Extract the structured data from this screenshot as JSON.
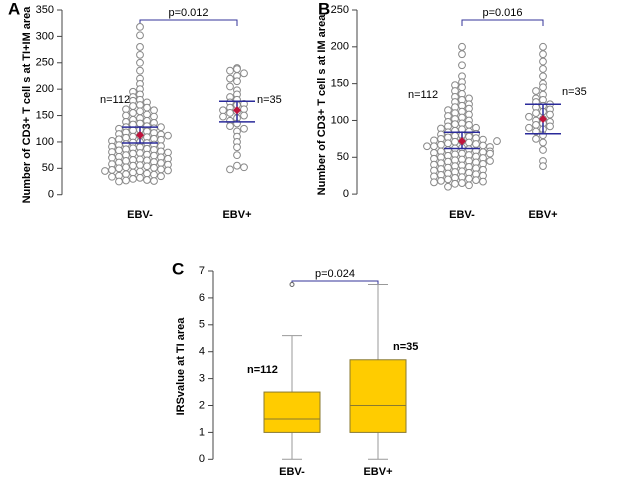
{
  "chart_data": [
    {
      "type": "dot",
      "panel_label": "A",
      "ylabel": "Number of CD3+ T cell s at TI+IM area",
      "categories": [
        "EBV-",
        "EBV+"
      ],
      "points": [
        [
          318,
          302,
          280,
          265,
          250,
          235,
          220,
          210,
          200,
          195,
          190,
          185,
          180,
          178,
          175,
          170,
          168,
          165,
          162,
          160,
          158,
          155,
          152,
          150,
          148,
          145,
          142,
          140,
          138,
          136,
          135,
          133,
          130,
          128,
          126,
          125,
          123,
          122,
          120,
          118,
          117,
          115,
          114,
          112,
          110,
          109,
          108,
          106,
          105,
          104,
          102,
          100,
          99,
          98,
          96,
          95,
          94,
          92,
          91,
          90,
          88,
          87,
          86,
          85,
          84,
          82,
          81,
          80,
          79,
          78,
          76,
          75,
          74,
          72,
          71,
          70,
          68,
          67,
          66,
          65,
          64,
          62,
          61,
          60,
          58,
          57,
          56,
          55,
          54,
          52,
          51,
          50,
          48,
          47,
          46,
          45,
          44,
          42,
          40,
          39,
          38,
          36,
          35,
          34,
          32,
          30,
          28,
          27,
          26,
          25,
          128,
          112
        ],
        [
          240,
          238,
          235,
          230,
          225,
          220,
          215,
          205,
          198,
          190,
          185,
          180,
          175,
          172,
          170,
          165,
          162,
          160,
          158,
          155,
          150,
          148,
          145,
          140,
          135,
          130,
          125,
          120,
          110,
          100,
          90,
          75,
          55,
          48,
          52
        ]
      ],
      "mean": [
        113,
        160
      ],
      "err_low": [
        98,
        138
      ],
      "err_high": [
        128,
        177
      ],
      "n_labels": [
        "n=112",
        "n=35"
      ],
      "p_label": "p=0.012",
      "ylim": [
        -10,
        350
      ],
      "yticks": [
        0,
        50,
        100,
        150,
        200,
        250,
        300,
        350
      ]
    },
    {
      "type": "dot",
      "panel_label": "B",
      "ylabel": "Number of CD3+ T cell s at IM area",
      "categories": [
        "EBV-",
        "EBV+"
      ],
      "points": [
        [
          200,
          190,
          175,
          160,
          152,
          148,
          145,
          140,
          136,
          132,
          130,
          128,
          125,
          122,
          120,
          118,
          116,
          114,
          112,
          110,
          108,
          106,
          104,
          102,
          100,
          98,
          96,
          95,
          94,
          92,
          90,
          89,
          88,
          86,
          85,
          84,
          82,
          81,
          80,
          79,
          78,
          77,
          76,
          75,
          74,
          73,
          72,
          71,
          70,
          69,
          68,
          67,
          66,
          65,
          64,
          63,
          62,
          61,
          60,
          59,
          58,
          57,
          56,
          55,
          54,
          53,
          52,
          51,
          50,
          49,
          48,
          47,
          46,
          45,
          44,
          43,
          42,
          41,
          40,
          39,
          38,
          37,
          36,
          35,
          34,
          33,
          32,
          31,
          30,
          29,
          28,
          27,
          26,
          25,
          24,
          23,
          22,
          21,
          20,
          19,
          18,
          17,
          16,
          15,
          14,
          12,
          10,
          65,
          72,
          58,
          45,
          55
        ],
        [
          200,
          190,
          180,
          170,
          160,
          150,
          145,
          140,
          135,
          130,
          128,
          125,
          122,
          120,
          118,
          115,
          112,
          110,
          108,
          105,
          102,
          100,
          98,
          96,
          94,
          92,
          90,
          88,
          85,
          80,
          75,
          70,
          60,
          45,
          38
        ]
      ],
      "mean": [
        72,
        102
      ],
      "err_low": [
        62,
        82
      ],
      "err_high": [
        84,
        122
      ],
      "n_labels": [
        "n=112",
        "n=35"
      ],
      "p_label": "p=0.016",
      "ylim": [
        -8,
        250
      ],
      "yticks": [
        0,
        50,
        100,
        150,
        200,
        250
      ]
    },
    {
      "type": "box",
      "panel_label": "C",
      "ylabel": "IRSvalue at TI area",
      "categories": [
        "EBV-",
        "EBV+"
      ],
      "boxes": [
        {
          "whislo": 0,
          "q1": 1,
          "med": 1.5,
          "q3": 2.5,
          "whishi": 4.6,
          "fliers": [
            6.5
          ]
        },
        {
          "whislo": 0,
          "q1": 1,
          "med": 2,
          "q3": 3.7,
          "whishi": 6.5,
          "fliers": []
        }
      ],
      "color": "#ffcc00",
      "n_labels": [
        "n=112",
        "n=35"
      ],
      "p_label": "p=0.024",
      "ylim": [
        -0.1,
        7
      ],
      "yticks": [
        0,
        1,
        2,
        3,
        4,
        5,
        6,
        7
      ]
    }
  ]
}
